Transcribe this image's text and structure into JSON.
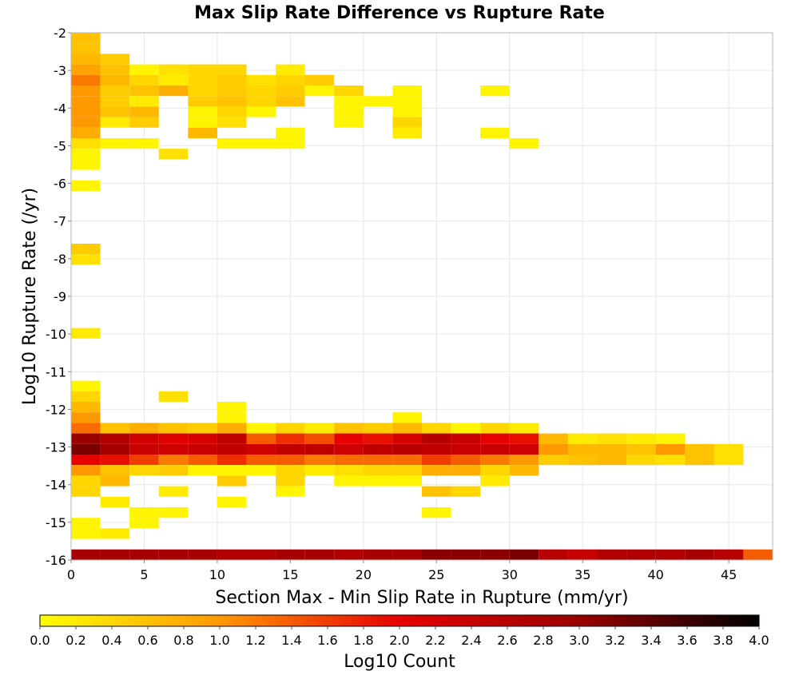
{
  "chart_data": {
    "type": "heatmap",
    "title": "Max Slip Rate Difference vs Rupture Rate",
    "xlabel": "Section Max - Min Slip Rate in Rupture (mm/yr)",
    "ylabel": "Log10 Rupture Rate (/yr)",
    "xlim": [
      0,
      48
    ],
    "ylim": [
      -16,
      -2
    ],
    "xticks": [
      "0",
      "5",
      "10",
      "15",
      "20",
      "25",
      "30",
      "35",
      "40",
      "45"
    ],
    "xtick_values": [
      0,
      5,
      10,
      15,
      20,
      25,
      30,
      35,
      40,
      45
    ],
    "yticks": [
      "-2",
      "-3",
      "-4",
      "-5",
      "-6",
      "-7",
      "-8",
      "-9",
      "-10",
      "-11",
      "-12",
      "-13",
      "-14",
      "-15",
      "-16"
    ],
    "ytick_values": [
      -2,
      -3,
      -4,
      -5,
      -6,
      -7,
      -8,
      -9,
      -10,
      -11,
      -12,
      -13,
      -14,
      -15,
      -16
    ],
    "grid": true,
    "x_bin_width": 2,
    "y_bin_width": 0.28,
    "colorbar": {
      "label": "Log10 Count",
      "min": 0,
      "max": 4,
      "ticks": [
        "0.0",
        "0.2",
        "0.4",
        "0.6",
        "0.8",
        "1.0",
        "1.2",
        "1.4",
        "1.6",
        "1.8",
        "2.0",
        "2.2",
        "2.4",
        "2.6",
        "2.8",
        "3.0",
        "3.2",
        "3.4",
        "3.6",
        "3.8",
        "4.0"
      ],
      "stops": [
        "#ffff00",
        "#ff9900",
        "#e60000",
        "#990000",
        "#000000"
      ]
    },
    "rows": [
      {
        "y": -2.14,
        "x": [
          0
        ],
        "v": [
          0.6
        ]
      },
      {
        "y": -2.42,
        "x": [
          0
        ],
        "v": [
          0.6
        ]
      },
      {
        "y": -2.7,
        "x": [
          0,
          2
        ],
        "v": [
          0.7,
          0.5
        ]
      },
      {
        "y": -2.98,
        "x": [
          0,
          2,
          4,
          6,
          8,
          10,
          14
        ],
        "v": [
          0.9,
          0.6,
          0.1,
          0.3,
          0.4,
          0.4,
          0.2
        ]
      },
      {
        "y": -3.26,
        "x": [
          0,
          2,
          4,
          6,
          8,
          10,
          12,
          14,
          16
        ],
        "v": [
          1.2,
          0.7,
          0.4,
          0.2,
          0.4,
          0.5,
          0.3,
          0.4,
          0.5
        ]
      },
      {
        "y": -3.54,
        "x": [
          0,
          2,
          4,
          6,
          8,
          10,
          12,
          14,
          16,
          18,
          22,
          28
        ],
        "v": [
          1.0,
          0.5,
          0.6,
          0.8,
          0.4,
          0.5,
          0.4,
          0.5,
          0.1,
          0.4,
          0.1,
          0.1
        ]
      },
      {
        "y": -3.82,
        "x": [
          0,
          2,
          4,
          8,
          10,
          12,
          14,
          18,
          20,
          22
        ],
        "v": [
          1.0,
          0.5,
          0.2,
          0.5,
          0.6,
          0.4,
          0.6,
          0.1,
          0.1,
          0.1
        ]
      },
      {
        "y": -4.1,
        "x": [
          0,
          2,
          4,
          8,
          10,
          12,
          18,
          22
        ],
        "v": [
          1.0,
          0.6,
          0.7,
          0.1,
          0.4,
          0.1,
          0.1,
          0.1
        ]
      },
      {
        "y": -4.38,
        "x": [
          0,
          2,
          4,
          8,
          10,
          18,
          22
        ],
        "v": [
          1.0,
          0.2,
          0.5,
          0.1,
          0.3,
          0.1,
          0.4
        ]
      },
      {
        "y": -4.66,
        "x": [
          0,
          8,
          14,
          22,
          28
        ],
        "v": [
          0.8,
          0.7,
          0.1,
          0.2,
          0.1
        ]
      },
      {
        "y": -4.94,
        "x": [
          0,
          2,
          4,
          10,
          12,
          14,
          30
        ],
        "v": [
          0.3,
          0.1,
          0.1,
          0.1,
          0.1,
          0.1,
          0.1
        ]
      },
      {
        "y": -5.22,
        "x": [
          0,
          6
        ],
        "v": [
          0.1,
          0.3
        ]
      },
      {
        "y": -5.5,
        "x": [
          0
        ],
        "v": [
          0.1
        ]
      },
      {
        "y": -6.06,
        "x": [
          0
        ],
        "v": [
          0.1
        ]
      },
      {
        "y": -7.74,
        "x": [
          0
        ],
        "v": [
          0.5
        ]
      },
      {
        "y": -8.02,
        "x": [
          0
        ],
        "v": [
          0.3
        ]
      },
      {
        "y": -9.98,
        "x": [
          0
        ],
        "v": [
          0.2
        ]
      },
      {
        "y": -11.38,
        "x": [
          0
        ],
        "v": [
          0.1
        ]
      },
      {
        "y": -11.66,
        "x": [
          0,
          6
        ],
        "v": [
          0.4,
          0.3
        ]
      },
      {
        "y": -11.94,
        "x": [
          0,
          10
        ],
        "v": [
          0.7,
          0.1
        ]
      },
      {
        "y": -12.22,
        "x": [
          0,
          10,
          22
        ],
        "v": [
          1.0,
          0.1,
          0.1
        ]
      },
      {
        "y": -12.5,
        "x": [
          0,
          2,
          4,
          6,
          8,
          10,
          12,
          14,
          16,
          18,
          20,
          22,
          24,
          26,
          28,
          30
        ],
        "v": [
          1.3,
          0.6,
          0.8,
          0.6,
          0.5,
          0.8,
          0.1,
          0.4,
          0.2,
          0.6,
          0.5,
          0.7,
          0.4,
          0.1,
          0.4,
          0.2
        ]
      },
      {
        "y": -12.78,
        "x": [
          0,
          2,
          4,
          6,
          8,
          10,
          12,
          14,
          16,
          18,
          20,
          22,
          24,
          26,
          28,
          30,
          32,
          34,
          36,
          38,
          40
        ],
        "v": [
          3.0,
          2.7,
          2.3,
          2.1,
          2.2,
          2.5,
          1.4,
          1.7,
          1.5,
          2.0,
          1.9,
          2.2,
          2.6,
          2.4,
          2.0,
          1.9,
          0.7,
          0.2,
          0.3,
          0.2,
          0.1
        ]
      },
      {
        "y": -13.06,
        "x": [
          0,
          2,
          4,
          6,
          8,
          10,
          12,
          14,
          16,
          18,
          20,
          22,
          24,
          26,
          28,
          30,
          32,
          34,
          36,
          38,
          40,
          42,
          44
        ],
        "v": [
          3.2,
          2.8,
          2.4,
          2.3,
          2.4,
          2.5,
          2.3,
          2.5,
          2.5,
          2.3,
          2.5,
          2.6,
          2.5,
          2.4,
          2.4,
          2.3,
          1.0,
          0.7,
          0.7,
          0.6,
          1.0,
          0.6,
          0.3
        ]
      },
      {
        "y": -13.34,
        "x": [
          0,
          2,
          4,
          6,
          8,
          10,
          12,
          14,
          16,
          18,
          20,
          22,
          24,
          26,
          28,
          30,
          32,
          34,
          36,
          38,
          40,
          42,
          44
        ],
        "v": [
          2.0,
          1.9,
          1.6,
          1.2,
          1.4,
          1.7,
          1.4,
          1.4,
          1.2,
          1.3,
          1.3,
          1.3,
          1.6,
          1.4,
          1.2,
          1.0,
          0.5,
          0.6,
          0.7,
          0.4,
          0.3,
          0.6,
          0.3
        ]
      },
      {
        "y": -13.62,
        "x": [
          0,
          2,
          4,
          6,
          8,
          10,
          12,
          14,
          16,
          18,
          20,
          22,
          24,
          26,
          28,
          30
        ],
        "v": [
          1.0,
          0.6,
          0.4,
          0.5,
          0.1,
          0.1,
          0.1,
          0.4,
          0.2,
          0.3,
          0.4,
          0.4,
          0.8,
          0.8,
          0.4,
          0.7
        ]
      },
      {
        "y": -13.9,
        "x": [
          0,
          2,
          10,
          14,
          18,
          20,
          22,
          28
        ],
        "v": [
          0.4,
          0.7,
          0.5,
          0.4,
          0.1,
          0.1,
          0.1,
          0.2
        ]
      },
      {
        "y": -14.18,
        "x": [
          0,
          6,
          14,
          24,
          26
        ],
        "v": [
          0.4,
          0.2,
          0.1,
          0.6,
          0.4
        ]
      },
      {
        "y": -14.46,
        "x": [
          2,
          10
        ],
        "v": [
          0.2,
          0.1
        ]
      },
      {
        "y": -14.74,
        "x": [
          4,
          6,
          24
        ],
        "v": [
          0.1,
          0.1,
          0.1
        ]
      },
      {
        "y": -15.02,
        "x": [
          0,
          4
        ],
        "v": [
          0.1,
          0.1
        ]
      },
      {
        "y": -15.3,
        "x": [
          0,
          2
        ],
        "v": [
          0.1,
          0.2
        ]
      },
      {
        "y": -15.86,
        "x": [
          0,
          2,
          4,
          6,
          8,
          10,
          12,
          14,
          16,
          18,
          20,
          22,
          24,
          26,
          28,
          30,
          32,
          34,
          36,
          38,
          40,
          42,
          44,
          46
        ],
        "v": [
          2.8,
          2.8,
          2.8,
          2.8,
          2.8,
          2.7,
          2.7,
          2.8,
          2.8,
          2.7,
          2.8,
          2.8,
          3.1,
          3.1,
          3.1,
          3.2,
          2.6,
          2.4,
          2.7,
          2.7,
          2.7,
          2.8,
          2.6,
          1.4
        ]
      }
    ]
  }
}
